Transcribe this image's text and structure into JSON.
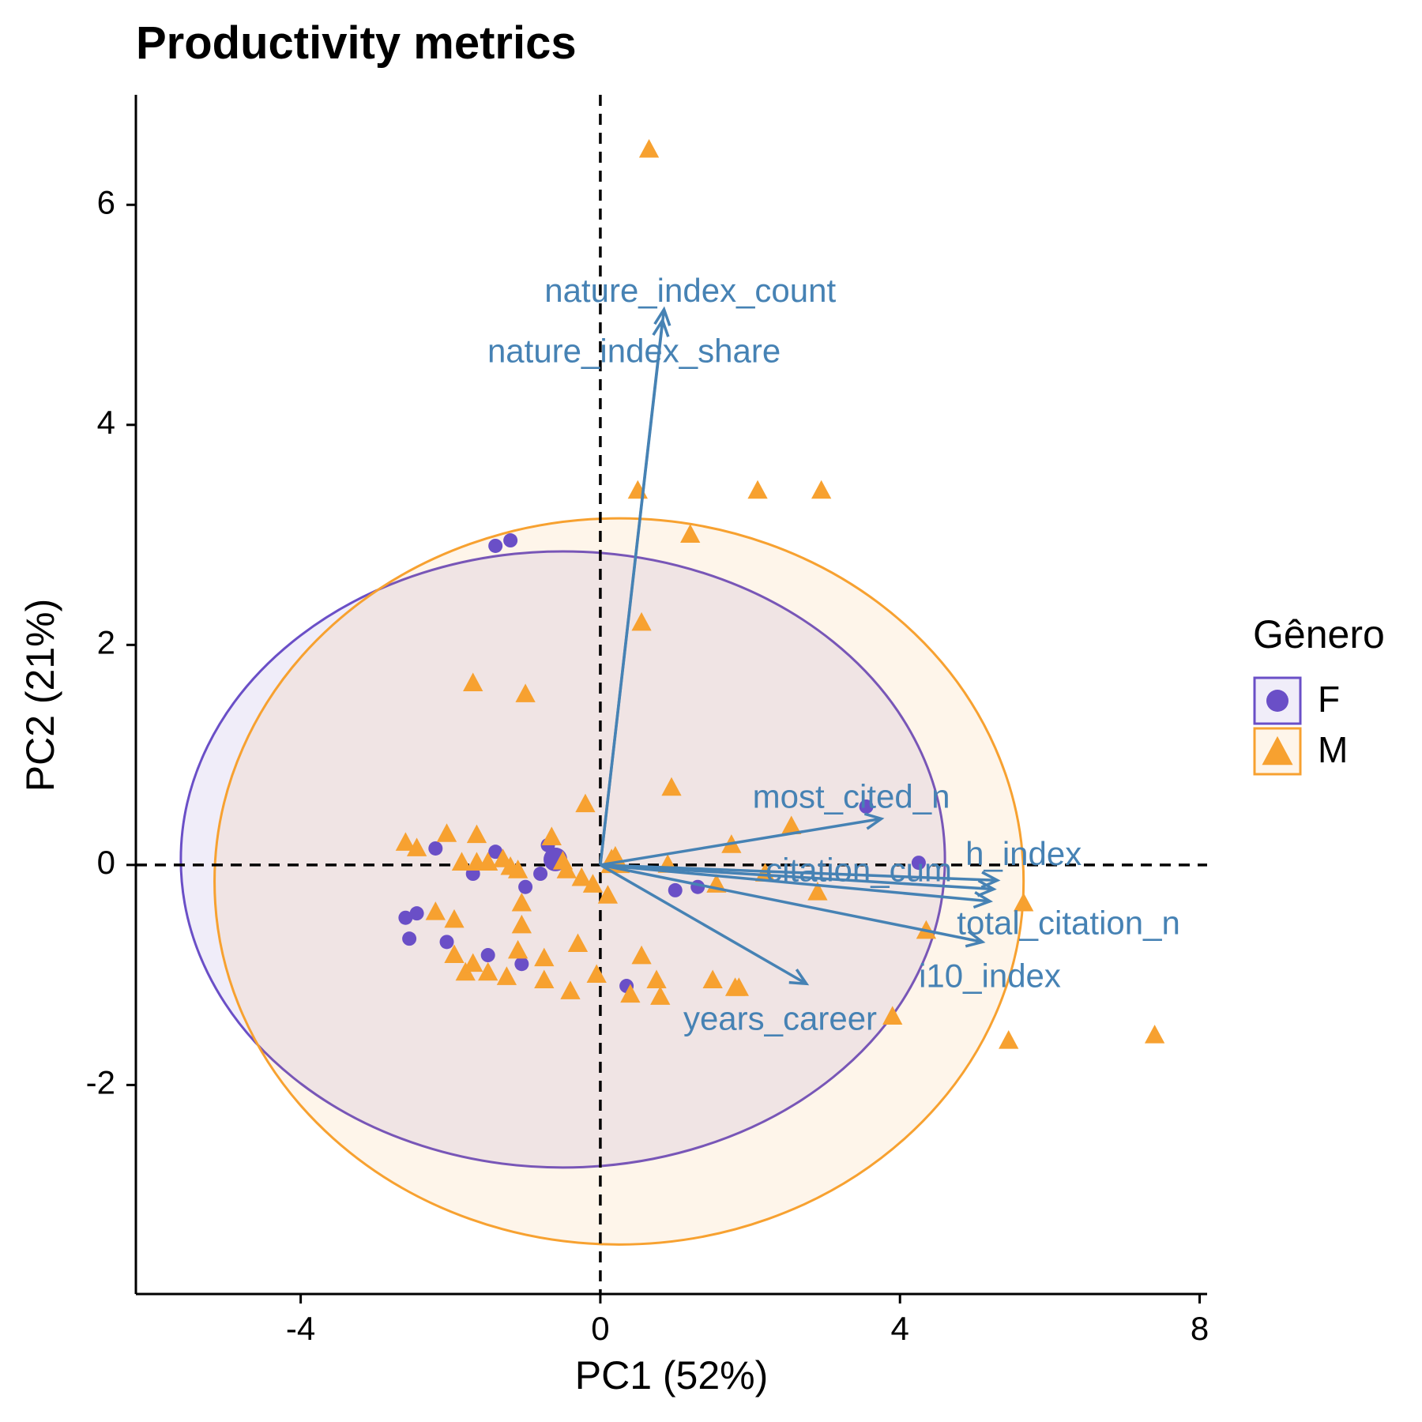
{
  "colors": {
    "F": "#6a4fc7",
    "M": "#f7a130",
    "arrow": "#4682b4",
    "axis": "#000000"
  },
  "chart_data": {
    "type": "scatter",
    "subtype": "pca-biplot",
    "title": "Productivity metrics",
    "xlabel": "PC1 (52%)",
    "ylabel": "PC2 (21%)",
    "xlim": [
      -6.2,
      8.1
    ],
    "ylim": [
      -3.9,
      7.0
    ],
    "xticks": [
      -4,
      0,
      4,
      8
    ],
    "yticks": [
      -2,
      0,
      2,
      4,
      6
    ],
    "xtick_labels": [
      "-4",
      "0",
      "4",
      "8"
    ],
    "ytick_labels": [
      "-2",
      "0",
      "2",
      "4",
      "6"
    ],
    "reference_lines": {
      "x": 0,
      "y": 0,
      "style": "dashed"
    },
    "legend": {
      "title": "Gênero",
      "position": "right"
    },
    "series": [
      {
        "name": "F",
        "marker": "circle",
        "centroid": [
          -0.6,
          0.05
        ],
        "ellipse": {
          "cx": -0.5,
          "cy": 0.05,
          "rx": 5.1,
          "ry": 2.8
        },
        "points": [
          [
            -1.4,
            2.9
          ],
          [
            -1.2,
            2.95
          ],
          [
            -2.2,
            0.15
          ],
          [
            -1.4,
            0.12
          ],
          [
            -0.7,
            0.18
          ],
          [
            -1.7,
            -0.08
          ],
          [
            -1.0,
            -0.2
          ],
          [
            -0.8,
            -0.08
          ],
          [
            -2.6,
            -0.48
          ],
          [
            -2.45,
            -0.44
          ],
          [
            -2.55,
            -0.67
          ],
          [
            -2.05,
            -0.7
          ],
          [
            -1.5,
            -0.82
          ],
          [
            -1.05,
            -0.9
          ],
          [
            0.35,
            -1.1
          ],
          [
            1.0,
            -0.23
          ],
          [
            1.3,
            -0.2
          ],
          [
            3.55,
            0.53
          ],
          [
            4.25,
            0.02
          ]
        ]
      },
      {
        "name": "M",
        "marker": "triangle",
        "centroid": [
          0.2,
          0.03
        ],
        "ellipse": {
          "cx": 0.25,
          "cy": -0.15,
          "rx": 5.4,
          "ry": 3.3
        },
        "points": [
          [
            0.65,
            6.5
          ],
          [
            0.5,
            3.4
          ],
          [
            2.1,
            3.4
          ],
          [
            2.95,
            3.4
          ],
          [
            1.2,
            3.0
          ],
          [
            0.55,
            2.2
          ],
          [
            -1.7,
            1.65
          ],
          [
            -1.0,
            1.55
          ],
          [
            0.95,
            0.7
          ],
          [
            -0.2,
            0.55
          ],
          [
            -2.6,
            0.2
          ],
          [
            -2.45,
            0.15
          ],
          [
            -2.05,
            0.28
          ],
          [
            -1.65,
            0.27
          ],
          [
            -1.85,
            0.02
          ],
          [
            -1.65,
            0.02
          ],
          [
            -1.5,
            0.02
          ],
          [
            -1.3,
            0.05
          ],
          [
            -1.2,
            -0.02
          ],
          [
            -1.1,
            -0.05
          ],
          [
            -0.65,
            0.25
          ],
          [
            -0.5,
            0.03
          ],
          [
            -0.45,
            -0.05
          ],
          [
            -0.25,
            -0.12
          ],
          [
            -0.1,
            -0.18
          ],
          [
            0.15,
            0.05
          ],
          [
            0.1,
            -0.28
          ],
          [
            0.9,
            0.0
          ],
          [
            1.55,
            -0.18
          ],
          [
            1.75,
            0.18
          ],
          [
            2.2,
            -0.08
          ],
          [
            2.55,
            0.35
          ],
          [
            2.9,
            -0.25
          ],
          [
            -2.2,
            -0.43
          ],
          [
            -1.95,
            -0.5
          ],
          [
            -1.95,
            -0.82
          ],
          [
            -1.8,
            -0.98
          ],
          [
            -1.7,
            -0.9
          ],
          [
            -1.5,
            -0.98
          ],
          [
            -1.25,
            -1.02
          ],
          [
            -1.05,
            -0.35
          ],
          [
            -1.05,
            -0.55
          ],
          [
            -1.1,
            -0.78
          ],
          [
            -0.75,
            -0.85
          ],
          [
            -0.75,
            -1.05
          ],
          [
            -0.3,
            -0.72
          ],
          [
            -0.4,
            -1.15
          ],
          [
            -0.05,
            -1.0
          ],
          [
            0.4,
            -1.18
          ],
          [
            0.55,
            -0.83
          ],
          [
            0.75,
            -1.05
          ],
          [
            0.8,
            -1.2
          ],
          [
            1.5,
            -1.05
          ],
          [
            1.8,
            -1.12
          ],
          [
            1.85,
            -1.12
          ],
          [
            3.9,
            -1.38
          ],
          [
            4.35,
            -0.6
          ],
          [
            5.45,
            -1.6
          ],
          [
            5.65,
            -0.35
          ],
          [
            7.4,
            -1.55
          ]
        ]
      }
    ],
    "loadings": [
      {
        "name": "nature_index_count",
        "x": 0.85,
        "y": 5.05,
        "label_x": 1.2,
        "label_y": 5.2
      },
      {
        "name": "nature_index_share",
        "x": 0.83,
        "y": 4.95,
        "label_x": 0.45,
        "label_y": 4.65
      },
      {
        "name": "most_cited_n",
        "x": 3.75,
        "y": 0.42,
        "label_x": 3.35,
        "label_y": 0.6
      },
      {
        "name": "h_index",
        "x": 5.3,
        "y": -0.14,
        "label_x": 5.65,
        "label_y": 0.08
      },
      {
        "name": "citation_cum",
        "x": 5.25,
        "y": -0.22,
        "label_x": 3.45,
        "label_y": -0.07
      },
      {
        "name": "total_citation_n",
        "x": 5.2,
        "y": -0.33,
        "label_x": 6.25,
        "label_y": -0.55
      },
      {
        "name": "i10_index",
        "x": 5.1,
        "y": -0.7,
        "label_x": 5.2,
        "label_y": -1.03
      },
      {
        "name": "years_career",
        "x": 2.75,
        "y": -1.08,
        "label_x": 2.4,
        "label_y": -1.42
      }
    ]
  }
}
